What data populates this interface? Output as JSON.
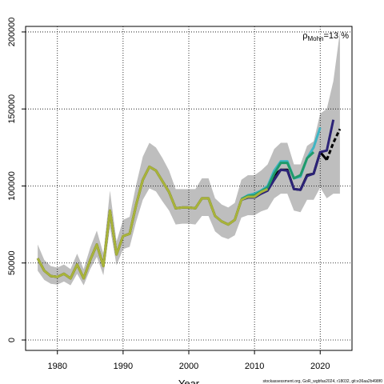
{
  "chart_data": {
    "type": "line",
    "xlabel": "Year",
    "annotation": {
      "symbol": "ρ",
      "subscript": "Mohn",
      "text": "=13 %"
    },
    "footer": "stockassessment.org, GoR_wgbfas2024, r18032, git:e36aa2b498f0",
    "x": [
      1977,
      1978,
      1979,
      1980,
      1981,
      1982,
      1983,
      1984,
      1985,
      1986,
      1987,
      1988,
      1989,
      1990,
      1991,
      1992,
      1993,
      1994,
      1995,
      1996,
      1997,
      1998,
      1999,
      2000,
      2001,
      2002,
      2003,
      2004,
      2005,
      2006,
      2007,
      2008,
      2009,
      2010,
      2011,
      2012,
      2013,
      2014,
      2015,
      2016,
      2017,
      2018,
      2019,
      2020,
      2021,
      2022,
      2023
    ],
    "band": {
      "color": "#bebebe",
      "upper": [
        62000,
        52000,
        48000,
        47000,
        49000,
        46000,
        56000,
        46000,
        60000,
        71000,
        56000,
        97000,
        64000,
        78000,
        80000,
        101000,
        119000,
        128000,
        125000,
        118000,
        110000,
        98000,
        98000,
        98000,
        98000,
        105000,
        105000,
        92000,
        88000,
        86000,
        89000,
        104000,
        107000,
        107000,
        110000,
        114000,
        124000,
        128000,
        128000,
        114000,
        114000,
        126000,
        129000,
        147000,
        150000,
        168000,
        200000
      ],
      "lower": [
        45000,
        39000,
        36500,
        36000,
        38000,
        35500,
        43000,
        35500,
        46000,
        54000,
        42000,
        73000,
        48500,
        59000,
        60500,
        77000,
        91000,
        98500,
        96500,
        90000,
        84000,
        75000,
        75500,
        75500,
        75000,
        80500,
        80500,
        70500,
        67000,
        65500,
        68000,
        79500,
        81000,
        81000,
        83500,
        85000,
        92000,
        95000,
        95000,
        84000,
        83000,
        91000,
        91000,
        99000,
        92000,
        95000,
        95000
      ]
    },
    "series": [
      {
        "color": "#000000",
        "values": [
          53000,
          45000,
          41500,
          41000,
          43000,
          40000,
          49000,
          40000,
          52000,
          62000,
          48000,
          84000,
          55500,
          67500,
          69000,
          88000,
          104000,
          112500,
          110000,
          103000,
          96000,
          85500,
          86000,
          86000,
          85500,
          92000,
          92000,
          80500,
          77000,
          75000,
          78000,
          91000,
          93000,
          93000,
          96000,
          98000,
          107000,
          110500,
          110500,
          98000,
          97500,
          107000,
          108000,
          122000,
          117000,
          null,
          null
        ]
      },
      {
        "color": "#000000",
        "dashed": true,
        "values": [
          null,
          null,
          null,
          null,
          null,
          null,
          null,
          null,
          null,
          null,
          null,
          null,
          null,
          null,
          null,
          null,
          null,
          null,
          null,
          null,
          null,
          null,
          null,
          null,
          null,
          null,
          null,
          null,
          null,
          null,
          null,
          null,
          null,
          null,
          null,
          null,
          null,
          null,
          null,
          null,
          null,
          null,
          null,
          null,
          117000,
          128000,
          137000
        ]
      },
      {
        "color": "#2c2377",
        "values": [
          null,
          null,
          null,
          null,
          null,
          null,
          null,
          null,
          null,
          null,
          null,
          null,
          null,
          null,
          null,
          null,
          null,
          null,
          null,
          null,
          null,
          null,
          null,
          null,
          null,
          null,
          null,
          null,
          null,
          null,
          null,
          91000,
          92500,
          92500,
          95000,
          97000,
          104000,
          110500,
          110000,
          98000,
          97500,
          106500,
          108000,
          122000,
          123000,
          143000,
          null
        ]
      },
      {
        "color": "#3fb5c4",
        "values": [
          null,
          null,
          null,
          null,
          null,
          null,
          null,
          null,
          null,
          null,
          null,
          null,
          null,
          null,
          null,
          null,
          null,
          null,
          null,
          null,
          null,
          null,
          null,
          null,
          null,
          null,
          null,
          null,
          null,
          null,
          null,
          91500,
          94000,
          95000,
          97000,
          100000,
          110000,
          116000,
          116000,
          105000,
          106000,
          118000,
          125000,
          138000,
          null,
          null,
          null
        ]
      },
      {
        "color": "#1f9a6b",
        "values": [
          null,
          null,
          null,
          null,
          null,
          null,
          null,
          null,
          null,
          null,
          null,
          null,
          null,
          null,
          null,
          null,
          null,
          null,
          null,
          null,
          null,
          null,
          null,
          null,
          null,
          null,
          null,
          null,
          null,
          null,
          null,
          91500,
          93500,
          94000,
          96500,
          99000,
          108000,
          115000,
          115000,
          105000,
          107000,
          118000,
          122000,
          null,
          null,
          null,
          null
        ]
      },
      {
        "color": "#a8b33a",
        "values": [
          53000,
          45000,
          41500,
          41000,
          43000,
          40000,
          49000,
          40000,
          52000,
          62000,
          48000,
          84000,
          55500,
          67500,
          69000,
          88000,
          104000,
          112500,
          110000,
          103000,
          96000,
          85500,
          86000,
          86000,
          85500,
          92000,
          92000,
          80500,
          77000,
          75000,
          78000,
          91000,
          93000,
          93000,
          96000,
          98000,
          null,
          null,
          null,
          null,
          null,
          null,
          null,
          null,
          null,
          null,
          null
        ]
      }
    ],
    "xlim": [
      1975.16,
      2024.84
    ],
    "ylim": [
      -6750,
      203600
    ],
    "xticks": [
      1980,
      1990,
      2000,
      2010,
      2020
    ],
    "yticks": [
      0,
      50000,
      100000,
      150000,
      200000
    ],
    "grid": true
  }
}
